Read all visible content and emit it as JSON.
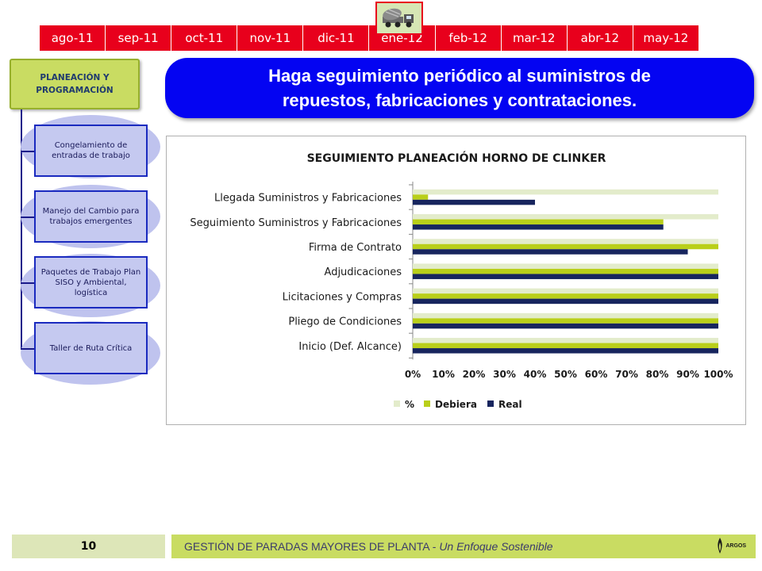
{
  "months": [
    "ago-11",
    "sep-11",
    "oct-11",
    "nov-11",
    "dic-11",
    "ene-12",
    "feb-12",
    "mar-12",
    "abr-12",
    "may-12"
  ],
  "truck_icon": "concrete-truck-icon",
  "sidebar": {
    "heading": "PLANEACIÓN Y PROGRAMACIÓN",
    "steps": [
      "Congelamiento de entradas de trabajo",
      "Manejo del Cambio para trabajos emergentes",
      "Paquetes de Trabajo Plan SISO y Ambiental, logística",
      "Taller de Ruta Crítica"
    ]
  },
  "banner": {
    "line1": "Haga seguimiento periódico al suministros de",
    "line2": "repuestos, fabricaciones y contrataciones."
  },
  "chart_data": {
    "type": "bar",
    "orientation": "horizontal",
    "title": "SEGUIMIENTO PLANEACIÓN HORNO DE CLINKER",
    "categories": [
      "Llegada Suministros y Fabricaciones",
      "Seguimiento Suministros y Fabricaciones",
      "Firma de Contrato",
      "Adjudicaciones",
      "Licitaciones y Compras",
      "Pliego de Condiciones",
      "Inicio (Def. Alcance)"
    ],
    "series": [
      {
        "name": "%",
        "color": "#e3eccb",
        "values": [
          1.0,
          1.0,
          1.0,
          1.0,
          1.0,
          1.0,
          1.0
        ]
      },
      {
        "name": "Debiera",
        "color": "#b9cf1a",
        "values": [
          0.05,
          0.82,
          1.0,
          1.0,
          1.0,
          1.0,
          1.0
        ]
      },
      {
        "name": "Real",
        "color": "#17255e",
        "values": [
          0.4,
          0.82,
          0.9,
          1.0,
          1.0,
          1.0,
          1.0
        ]
      }
    ],
    "xticks": [
      "0%",
      "10%",
      "20%",
      "30%",
      "40%",
      "50%",
      "60%",
      "70%",
      "80%",
      "90%",
      "100%"
    ],
    "xlim": [
      0,
      1
    ],
    "legend_position": "bottom-center",
    "grid": false
  },
  "footer": {
    "page_number": "10",
    "title_main": "GESTIÓN DE PARADAS MAYORES DE PLANTA",
    "title_separator": " - ",
    "title_sub": "Un Enfoque Sostenible",
    "logo_text": "ARGOS",
    "logo_icon": "argos-flame-icon"
  }
}
